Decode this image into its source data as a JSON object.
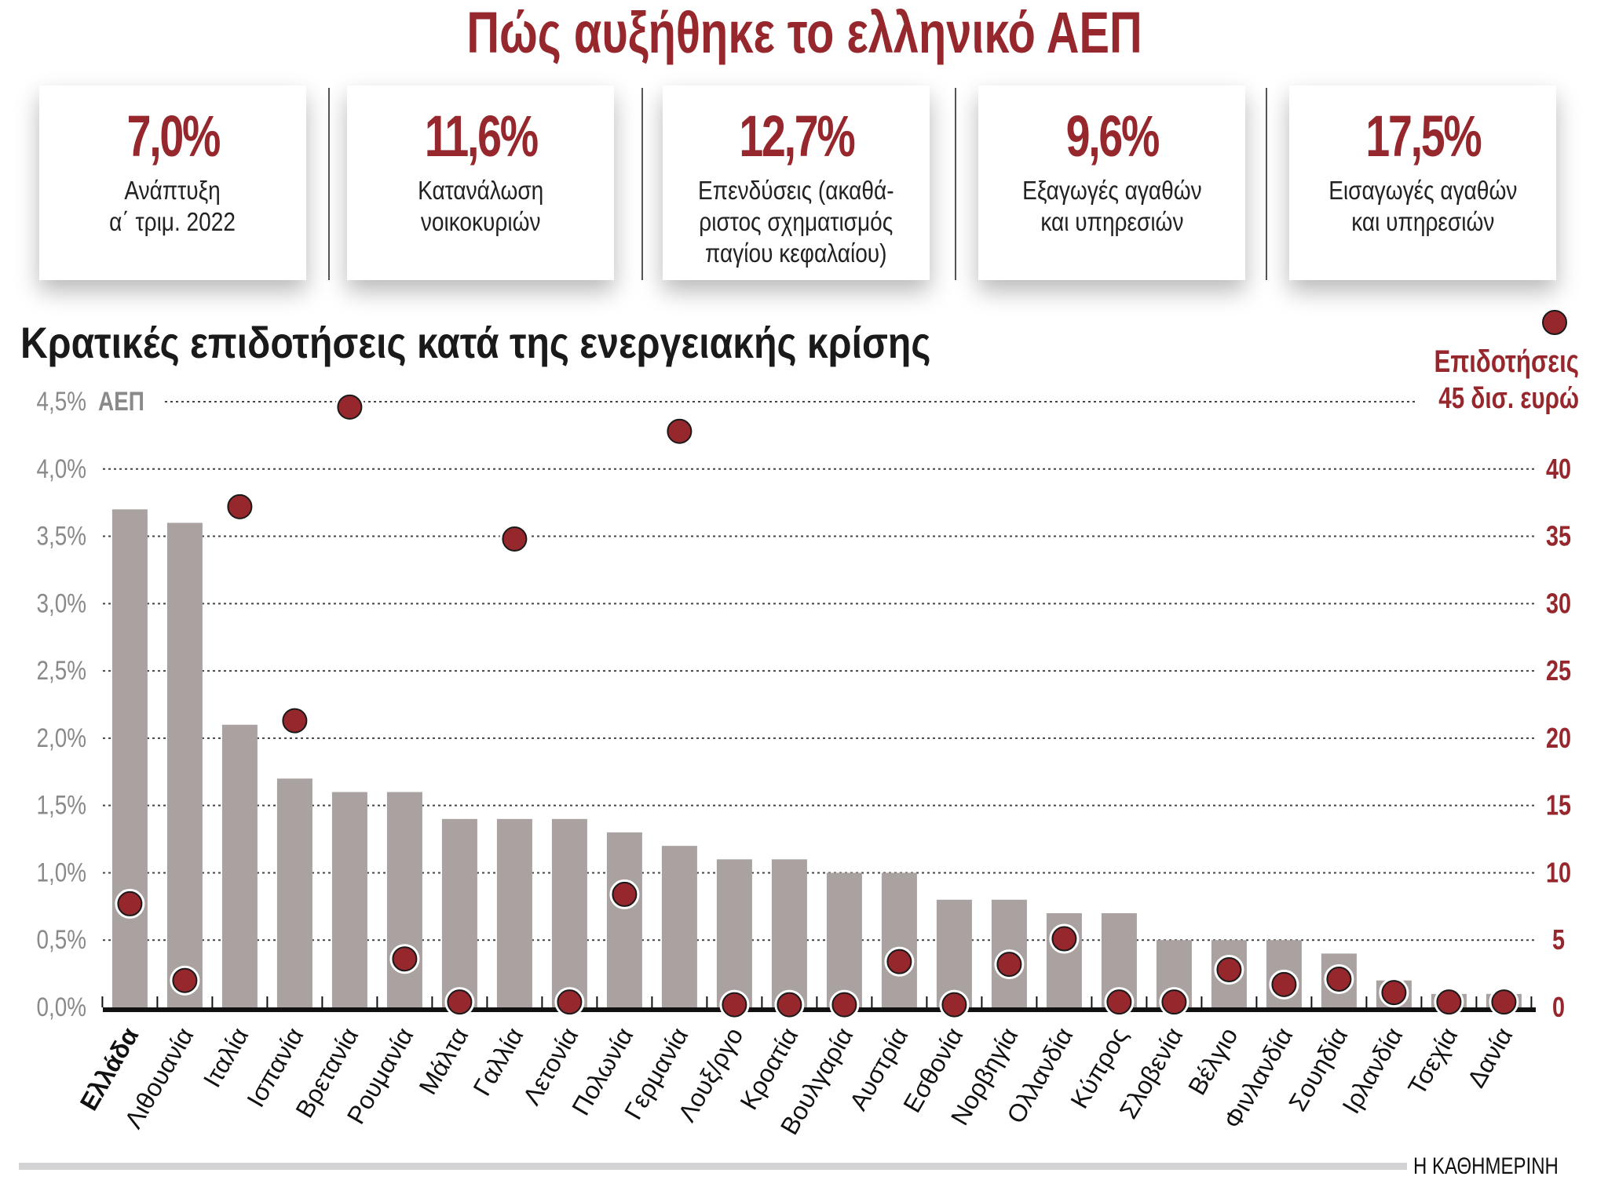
{
  "header": {
    "title": "Πώς αυξήθηκε το ελληνικό ΑΕΠ"
  },
  "cards": [
    {
      "value": "7,0%",
      "label": "Ανάπτυξη\nα΄ τριμ. 2022"
    },
    {
      "value": "11,6%",
      "label": "Κατανάλωση\nνοικοκυριών"
    },
    {
      "value": "12,7%",
      "label": "Επενδύσεις (ακαθά-\nριστος σχηματισμός\nπαγίου κεφαλαίου)"
    },
    {
      "value": "9,6%",
      "label": "Εξαγωγές αγαθών\nκαι υπηρεσιών"
    },
    {
      "value": "17,5%",
      "label": "Εισαγωγές αγαθών\nκαι υπηρεσιών"
    }
  ],
  "colors": {
    "accent": "#96272d",
    "bar": "#a9a2a0",
    "left_axis": "#8a8a8a"
  },
  "chart_data": {
    "type": "bar",
    "title": "Κρατικές επιδοτήσεις κατά της ενεργειακής κρίσης",
    "categories": [
      "Ελλάδα",
      "Λιθουανία",
      "Ιταλία",
      "Ισπανία",
      "Βρετανία",
      "Ρουμανία",
      "Μάλτα",
      "Γαλλία",
      "Λετονία",
      "Πολωνία",
      "Γερμανία",
      "Λουξ/ργο",
      "Κροατία",
      "Βουλγαρία",
      "Αυστρία",
      "Εσθονία",
      "Νορβηγία",
      "Ολλανδία",
      "Κύπρος",
      "Σλοβενία",
      "Βέλγιο",
      "Φινλανδία",
      "Σουηδία",
      "Ιρλανδία",
      "Τσεχία",
      "Δανία"
    ],
    "highlight_category": "Ελλάδα",
    "series": [
      {
        "name": "ΑΕΠ",
        "axis": "left",
        "type": "bar",
        "values": [
          3.7,
          3.6,
          2.1,
          1.7,
          1.6,
          1.6,
          1.4,
          1.4,
          1.4,
          1.3,
          1.2,
          1.1,
          1.1,
          1.0,
          1.0,
          0.8,
          0.8,
          0.7,
          0.7,
          0.5,
          0.5,
          0.5,
          0.4,
          0.2,
          0.1,
          0.1
        ]
      },
      {
        "name": "Επιδοτήσεις",
        "axis": "right",
        "type": "scatter",
        "values": [
          7.7,
          2.0,
          37.2,
          21.3,
          44.6,
          3.6,
          0.4,
          34.8,
          0.4,
          8.4,
          42.8,
          0.2,
          0.2,
          0.2,
          3.4,
          0.2,
          3.2,
          5.1,
          0.4,
          0.4,
          2.8,
          1.7,
          2.1,
          1.1,
          0.4,
          0.4
        ]
      }
    ],
    "left_axis": {
      "ylim": [
        0,
        4.5
      ],
      "ticks": [
        "0,0%",
        "0,5%",
        "1,0%",
        "1,5%",
        "2,0%",
        "2,5%",
        "3,0%",
        "3,5%",
        "4,0%",
        "4,5%"
      ],
      "label": "ΑΕΠ"
    },
    "right_axis": {
      "ylim": [
        0,
        45
      ],
      "ticks": [
        "0",
        "5",
        "10",
        "15",
        "20",
        "25",
        "30",
        "35",
        "40"
      ],
      "label_line1": "Επιδοτήσεις",
      "label_line2": "45 δισ. ευρώ"
    },
    "grid": true,
    "legend": "top-right"
  },
  "footer": {
    "brand": "Η ΚΑΘΗΜΕΡΙΝΗ"
  }
}
